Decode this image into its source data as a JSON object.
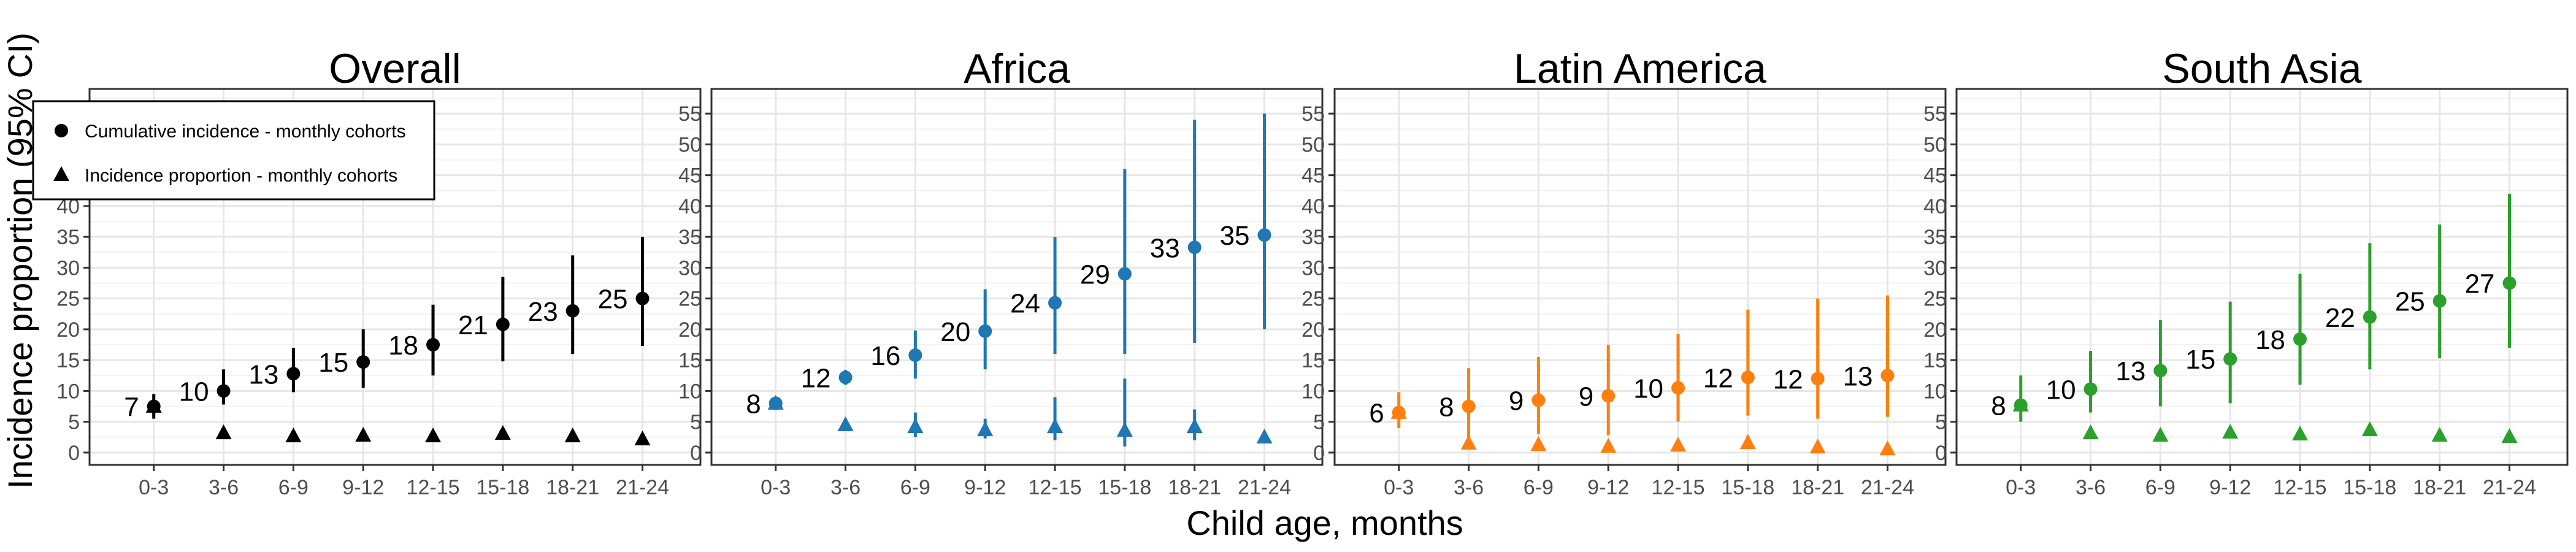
{
  "figure": {
    "ylabel": "Incidence proportion (95% CI)",
    "xlabel": "Child age, months"
  },
  "legend": {
    "items": [
      {
        "label": "Cumulative incidence - monthly cohorts",
        "marker": "circle"
      },
      {
        "label": "Incidence proportion - monthly cohorts",
        "marker": "triangle"
      }
    ]
  },
  "chart_data": [
    {
      "type": "scatter",
      "title": "Overall",
      "color": "#000000",
      "categories": [
        "0-3",
        "3-6",
        "6-9",
        "9-12",
        "12-15",
        "15-18",
        "18-21",
        "21-24"
      ],
      "yticks": [
        0,
        5,
        10,
        15,
        20,
        25,
        30,
        35,
        40,
        45,
        50,
        55
      ],
      "ylim": [
        -2,
        59
      ],
      "grid": true,
      "legend_position": "top-left",
      "series": [
        {
          "marker": "circle",
          "values": [
            7.5,
            10,
            12.8,
            14.7,
            17.5,
            20.8,
            23,
            25
          ],
          "ci_low": [
            5.5,
            7.8,
            9.8,
            10.5,
            12.5,
            14.8,
            16,
            17.3
          ],
          "ci_high": [
            9.5,
            13.5,
            17,
            20,
            24,
            28.5,
            32,
            35
          ],
          "labels": [
            "7",
            "10",
            "13",
            "15",
            "18",
            "21",
            "23",
            "25"
          ]
        },
        {
          "marker": "triangle",
          "values": [
            7.5,
            3.2,
            2.7,
            2.8,
            2.7,
            3.1,
            2.7,
            2.2
          ],
          "ci_low": [
            7.5,
            2.5,
            2.2,
            2.2,
            2.1,
            2.4,
            2.0,
            1.6
          ],
          "ci_high": [
            7.5,
            3.9,
            3.3,
            3.5,
            3.3,
            3.9,
            3.4,
            2.8
          ]
        }
      ]
    },
    {
      "type": "scatter",
      "title": "Africa",
      "color": "#1F77B4",
      "categories": [
        "0-3",
        "3-6",
        "6-9",
        "9-12",
        "12-15",
        "15-18",
        "18-21",
        "21-24"
      ],
      "yticks": [
        0,
        5,
        10,
        15,
        20,
        25,
        30,
        35,
        40,
        45,
        50,
        55
      ],
      "ylim": [
        -2,
        59
      ],
      "grid": true,
      "series": [
        {
          "marker": "circle",
          "values": [
            8,
            12.2,
            15.8,
            19.7,
            24.3,
            29,
            33.3,
            35.3
          ],
          "ci_low": [
            7.2,
            11,
            12,
            13.5,
            16,
            16,
            17.8,
            20
          ],
          "ci_high": [
            8.8,
            13.4,
            19.8,
            26.5,
            35,
            46,
            54,
            55
          ],
          "labels": [
            "8",
            "12",
            "16",
            "20",
            "24",
            "29",
            "33",
            "35"
          ]
        },
        {
          "marker": "triangle",
          "values": [
            8,
            4.5,
            4.2,
            3.7,
            4.2,
            3.6,
            4.2,
            2.5
          ],
          "ci_low": [
            8,
            3.5,
            2.5,
            2.3,
            2.0,
            1.0,
            2.0,
            1.5
          ],
          "ci_high": [
            8,
            5.5,
            6.5,
            5.5,
            9.0,
            12.0,
            7.0,
            3.5
          ]
        }
      ]
    },
    {
      "type": "scatter",
      "title": "Latin America",
      "color": "#FF7F0E",
      "categories": [
        "0-3",
        "3-6",
        "6-9",
        "9-12",
        "12-15",
        "15-18",
        "18-21",
        "21-24"
      ],
      "yticks": [
        0,
        5,
        10,
        15,
        20,
        25,
        30,
        35,
        40,
        45,
        50,
        55
      ],
      "ylim": [
        -2,
        59
      ],
      "grid": true,
      "series": [
        {
          "marker": "circle",
          "values": [
            6.5,
            7.5,
            8.5,
            9.2,
            10.5,
            12.2,
            12,
            12.5
          ],
          "ci_low": [
            4,
            2,
            3,
            2.8,
            5,
            6,
            5.5,
            5.8
          ],
          "ci_high": [
            9.8,
            13.7,
            15.5,
            17.5,
            19.2,
            23.2,
            25,
            25.5
          ],
          "labels": [
            "6",
            "8",
            "9",
            "9",
            "10",
            "12",
            "12",
            "13"
          ]
        },
        {
          "marker": "triangle",
          "values": [
            6.5,
            1.5,
            1.3,
            1.0,
            1.2,
            1.6,
            0.9,
            0.6
          ],
          "ci_low": [
            6.5,
            0.6,
            0.5,
            0.3,
            0.5,
            0.6,
            0.2,
            0.1
          ],
          "ci_high": [
            6.5,
            2.5,
            2.2,
            1.8,
            2.0,
            2.8,
            1.7,
            1.2
          ]
        }
      ]
    },
    {
      "type": "scatter",
      "title": "South Asia",
      "color": "#2CA02C",
      "categories": [
        "0-3",
        "3-6",
        "6-9",
        "9-12",
        "12-15",
        "15-18",
        "18-21",
        "21-24"
      ],
      "yticks": [
        0,
        5,
        10,
        15,
        20,
        25,
        30,
        35,
        40,
        45,
        50,
        55
      ],
      "ylim": [
        -2,
        59
      ],
      "grid": true,
      "series": [
        {
          "marker": "circle",
          "values": [
            7.7,
            10.3,
            13.3,
            15.2,
            18.4,
            22,
            24.6,
            27.5
          ],
          "ci_low": [
            5,
            6.5,
            7.5,
            8,
            11,
            13.5,
            15.3,
            17
          ],
          "ci_high": [
            12.5,
            16.5,
            21.5,
            24.5,
            29,
            34,
            37,
            42
          ],
          "labels": [
            "8",
            "10",
            "13",
            "15",
            "18",
            "22",
            "25",
            "27"
          ]
        },
        {
          "marker": "triangle",
          "values": [
            7.7,
            3.2,
            2.8,
            3.3,
            3.0,
            3.7,
            2.8,
            2.6
          ],
          "ci_low": [
            7.7,
            2.3,
            2.2,
            2.5,
            2.4,
            2.8,
            2.2,
            1.9
          ],
          "ci_high": [
            7.7,
            4.2,
            3.5,
            4.2,
            3.6,
            4.6,
            3.4,
            3.3
          ]
        }
      ]
    }
  ]
}
